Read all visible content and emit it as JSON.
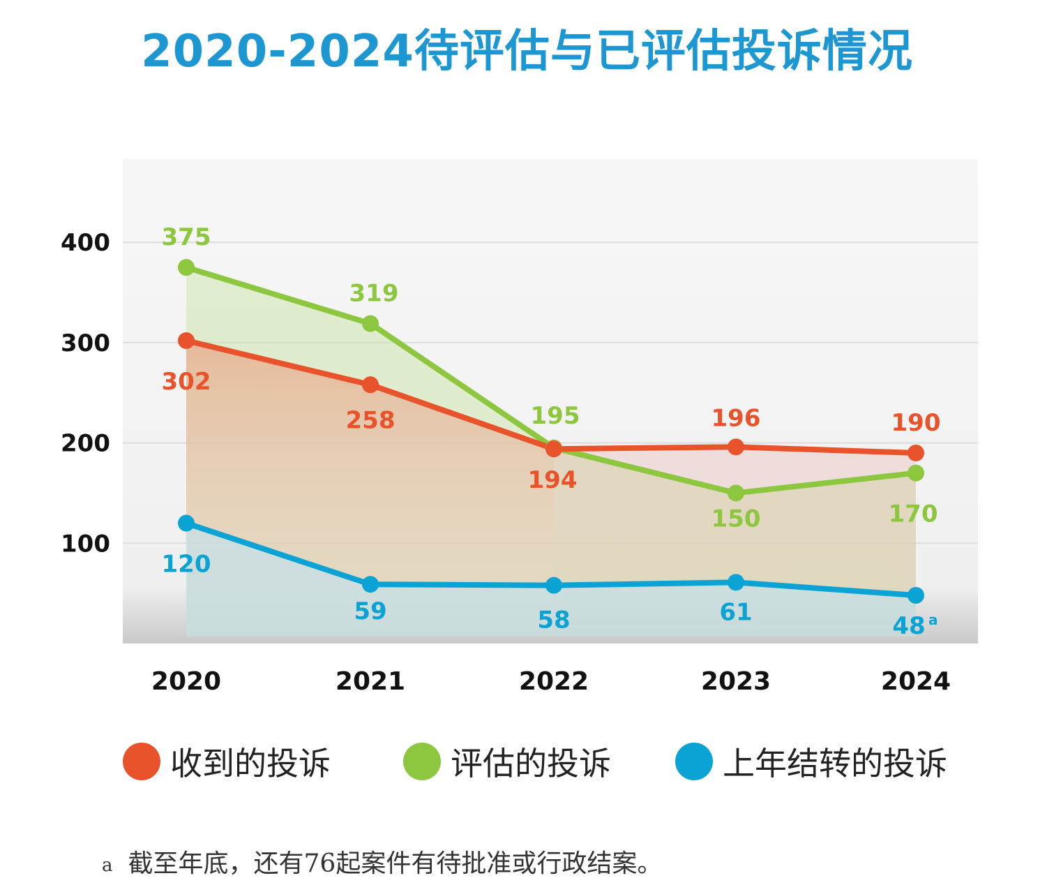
{
  "chart_data": {
    "type": "line",
    "title": "2020-2024待评估与已评估投诉情况",
    "categories": [
      "2020",
      "2021",
      "2022",
      "2023",
      "2024"
    ],
    "ylim": [
      0,
      480
    ],
    "yticks": [
      100,
      200,
      300,
      400
    ],
    "series": [
      {
        "name": "收到的投诉",
        "color": "#e8532b",
        "values": [
          302,
          258,
          194,
          196,
          190
        ],
        "labels": [
          "302",
          "258",
          "194",
          "196",
          "190"
        ]
      },
      {
        "name": "评估的投诉",
        "color": "#8dc63f",
        "values": [
          375,
          319,
          195,
          150,
          170
        ],
        "labels": [
          "375",
          "319",
          "195",
          "150",
          "170"
        ]
      },
      {
        "name": "上年结转的投诉",
        "color": "#0aa3d3",
        "values": [
          120,
          59,
          58,
          61,
          48
        ],
        "labels": [
          "120",
          "59",
          "58",
          "61",
          "48"
        ]
      }
    ],
    "annotation": "a"
  },
  "legend": [
    {
      "label": "收到的投诉",
      "color": "#e8532b"
    },
    {
      "label": "评估的投诉",
      "color": "#8dc63f"
    },
    {
      "label": "上年结转的投诉",
      "color": "#0aa3d3"
    }
  ],
  "footnote": {
    "mark": "a",
    "text": "截至年底，还有76起案件有待批准或行政结案。"
  }
}
